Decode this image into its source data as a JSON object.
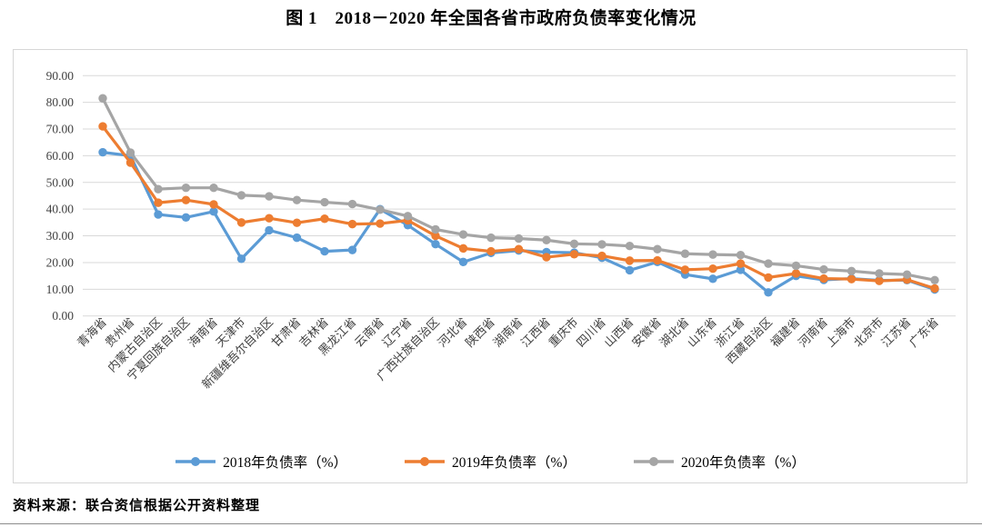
{
  "title": "图 1　2018－2020 年全国各省市政府负债率变化情况",
  "source_note": "资料来源：联合资信根据公开资料整理",
  "colors": {
    "series_2018": "#5B9BD5",
    "series_2019": "#ED7D31",
    "series_2020": "#A5A5A5",
    "gridline": "#D9D9D9",
    "axis_text": "#3f3f3f",
    "frame_border": "#d6d6d6"
  },
  "y_axis": {
    "labels": [
      "90.00",
      "80.00",
      "70.00",
      "60.00",
      "50.00",
      "40.00",
      "30.00",
      "20.00",
      "10.00",
      "0.00"
    ],
    "min": 0,
    "max": 90,
    "step": 10
  },
  "chart_data": {
    "type": "line",
    "title": "图 1　2018－2020 年全国各省市政府负债率变化情况",
    "xlabel": "",
    "ylabel": "",
    "ylim": [
      0,
      90
    ],
    "grid": true,
    "legend_position": "bottom",
    "categories": [
      "青海省",
      "贵州省",
      "内蒙古自治区",
      "宁夏回族自治区",
      "海南省",
      "天津市",
      "新疆维吾尔自治区",
      "甘肃省",
      "吉林省",
      "黑龙江省",
      "云南省",
      "辽宁省",
      "广西壮族自治区",
      "河北省",
      "陕西省",
      "湖南省",
      "江西省",
      "重庆市",
      "四川省",
      "山西省",
      "安徽省",
      "湖北省",
      "山东省",
      "浙江省",
      "西藏自治区",
      "福建省",
      "河南省",
      "上海市",
      "北京市",
      "江苏省",
      "广东省"
    ],
    "series": [
      {
        "name": "2018年负债率（%）",
        "color": "#5B9BD5",
        "values": [
          61.3,
          60.0,
          38.0,
          36.9,
          39.1,
          21.4,
          32.1,
          29.3,
          24.2,
          24.7,
          40.0,
          34.0,
          26.9,
          20.2,
          23.6,
          24.5,
          23.9,
          23.7,
          21.8,
          17.1,
          20.2,
          15.5,
          13.9,
          17.3,
          8.8,
          15.0,
          13.5,
          14.0,
          13.3,
          13.4,
          9.9
        ]
      },
      {
        "name": "2019年负债率（%）",
        "color": "#ED7D31",
        "values": [
          71.0,
          57.4,
          42.4,
          43.4,
          41.8,
          35.0,
          36.6,
          34.9,
          36.4,
          34.4,
          34.6,
          35.8,
          30.0,
          25.3,
          24.2,
          25.0,
          22.0,
          23.1,
          22.5,
          20.7,
          20.8,
          17.3,
          17.7,
          19.6,
          14.4,
          15.9,
          14.0,
          13.8,
          13.1,
          13.6,
          10.3
        ]
      },
      {
        "name": "2020年负债率（%）",
        "color": "#A5A5A5",
        "values": [
          81.5,
          61.2,
          47.5,
          48.0,
          48.0,
          45.2,
          44.8,
          43.4,
          42.6,
          41.9,
          39.8,
          37.4,
          32.4,
          30.5,
          29.3,
          29.0,
          28.4,
          27.0,
          26.8,
          26.2,
          25.0,
          23.3,
          23.0,
          22.8,
          19.6,
          18.8,
          17.4,
          16.8,
          15.9,
          15.5,
          13.4
        ]
      }
    ]
  }
}
